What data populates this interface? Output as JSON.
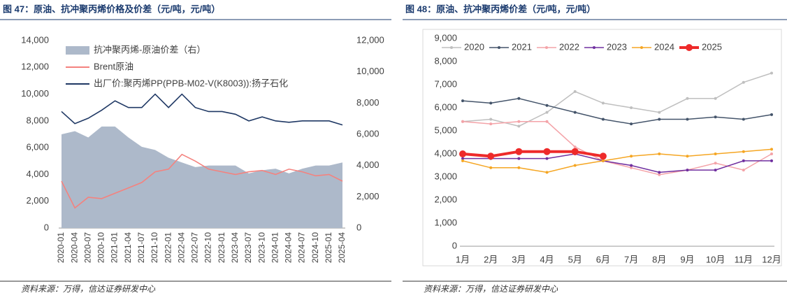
{
  "chart_data": [
    {
      "type": "line",
      "title": "图 47：原油、抗冲聚丙烯价格及价差（元/吨，元/吨）",
      "note": "资料来源：万得，信达证券研发中心",
      "categories": [
        "2020-01",
        "2020-04",
        "2020-07",
        "2020-10",
        "2021-01",
        "2021-04",
        "2021-07",
        "2021-10",
        "2022-01",
        "2022-04",
        "2022-07",
        "2022-10",
        "2023-01",
        "2023-04",
        "2023-07",
        "2023-10",
        "2024-01",
        "2024-04",
        "2024-07",
        "2024-10",
        "2025-01",
        "2025-04"
      ],
      "series": [
        {
          "name": "抗冲聚丙烯-原油价差（右）",
          "type": "area",
          "axis": "y2",
          "color": "#adb9ca",
          "values": [
            6000,
            6200,
            5800,
            6500,
            6500,
            5800,
            5200,
            5000,
            4500,
            4200,
            3900,
            4000,
            4000,
            4000,
            3500,
            3700,
            3800,
            3500,
            3800,
            4000,
            4000,
            4200
          ]
        },
        {
          "name": "Brent原油",
          "color": "#f4827e",
          "values": [
            3500,
            1500,
            2300,
            2200,
            2600,
            3000,
            3400,
            4200,
            4400,
            5500,
            5000,
            4400,
            4200,
            4000,
            4200,
            4300,
            4000,
            4400,
            4200,
            3900,
            4000,
            3500
          ]
        },
        {
          "name": "出厂价:聚丙烯PP(PPB-M02-V(K8003)):扬子石化",
          "color": "#1f3864",
          "values": [
            8700,
            7800,
            8200,
            8800,
            9500,
            9000,
            9000,
            10000,
            9000,
            10000,
            9000,
            8700,
            8700,
            8500,
            8000,
            8300,
            8000,
            7900,
            8000,
            8000,
            8000,
            7700
          ]
        }
      ],
      "ylim": [
        0,
        14000
      ],
      "yticks": [
        0,
        {
          "value": 2000,
          "label": "2,000"
        },
        {
          "value": 4000,
          "label": "4,000"
        },
        {
          "value": 6000,
          "label": "6,000"
        },
        {
          "value": 8000,
          "label": "8,000"
        },
        {
          "value": 10000,
          "label": "10,000"
        },
        {
          "value": 12000,
          "label": "12,000"
        },
        {
          "value": 14000,
          "label": "14,000"
        }
      ],
      "y2lim": [
        0,
        12000
      ],
      "y2ticks": [
        0,
        {
          "value": 2000,
          "label": "2,000"
        },
        {
          "value": 4000,
          "label": "4,000"
        },
        {
          "value": 6000,
          "label": "6,000"
        },
        {
          "value": 8000,
          "label": "8,000"
        },
        {
          "value": 10000,
          "label": "10,000"
        },
        {
          "value": 12000,
          "label": "12,000"
        }
      ]
    },
    {
      "type": "line",
      "title": "图 48：原油、抗冲聚丙烯价差（元/吨，元/吨）",
      "note": "资料来源：万得，信达证券研发中心",
      "categories": [
        "1月",
        "2月",
        "3月",
        "4月",
        "5月",
        "6月",
        "7月",
        "8月",
        "9月",
        "10月",
        "11月",
        "12月"
      ],
      "series": [
        {
          "name": "2020",
          "color": "#bfbfbf",
          "values": [
            5400,
            5500,
            5200,
            5800,
            6700,
            6200,
            6000,
            5800,
            6400,
            6400,
            7100,
            7500
          ]
        },
        {
          "name": "2021",
          "color": "#44546a",
          "values": [
            6300,
            6200,
            6400,
            6100,
            5800,
            5500,
            5300,
            5500,
            5500,
            5600,
            5500,
            5700
          ]
        },
        {
          "name": "2022",
          "color": "#f4a3a8",
          "values": [
            5400,
            5300,
            5400,
            5400,
            4300,
            3700,
            3400,
            3100,
            3300,
            3600,
            3300,
            4000
          ]
        },
        {
          "name": "2023",
          "color": "#7030a0",
          "values": [
            3800,
            3800,
            3800,
            3800,
            4000,
            3700,
            3500,
            3200,
            3300,
            3300,
            3700,
            3700
          ]
        },
        {
          "name": "2024",
          "color": "#f5a623",
          "values": [
            3700,
            3400,
            3400,
            3200,
            3500,
            3700,
            3900,
            4000,
            3900,
            4000,
            4100,
            4200
          ]
        },
        {
          "name": "2025",
          "color": "#ee2a2a",
          "values": [
            4000,
            3900,
            4100,
            4100,
            4100,
            3900,
            null,
            null,
            null,
            null,
            null,
            null
          ]
        }
      ],
      "ylim": [
        0,
        9000
      ],
      "yticks": [
        0,
        {
          "value": 1000,
          "label": "1,000"
        },
        {
          "value": 2000,
          "label": "2,000"
        },
        {
          "value": 3000,
          "label": "3,000"
        },
        {
          "value": 4000,
          "label": "4,000"
        },
        {
          "value": 5000,
          "label": "5,000"
        },
        {
          "value": 6000,
          "label": "6,000"
        },
        {
          "value": 7000,
          "label": "7,000"
        },
        {
          "value": 8000,
          "label": "8,000"
        },
        {
          "value": 9000,
          "label": "9,000"
        }
      ]
    }
  ]
}
